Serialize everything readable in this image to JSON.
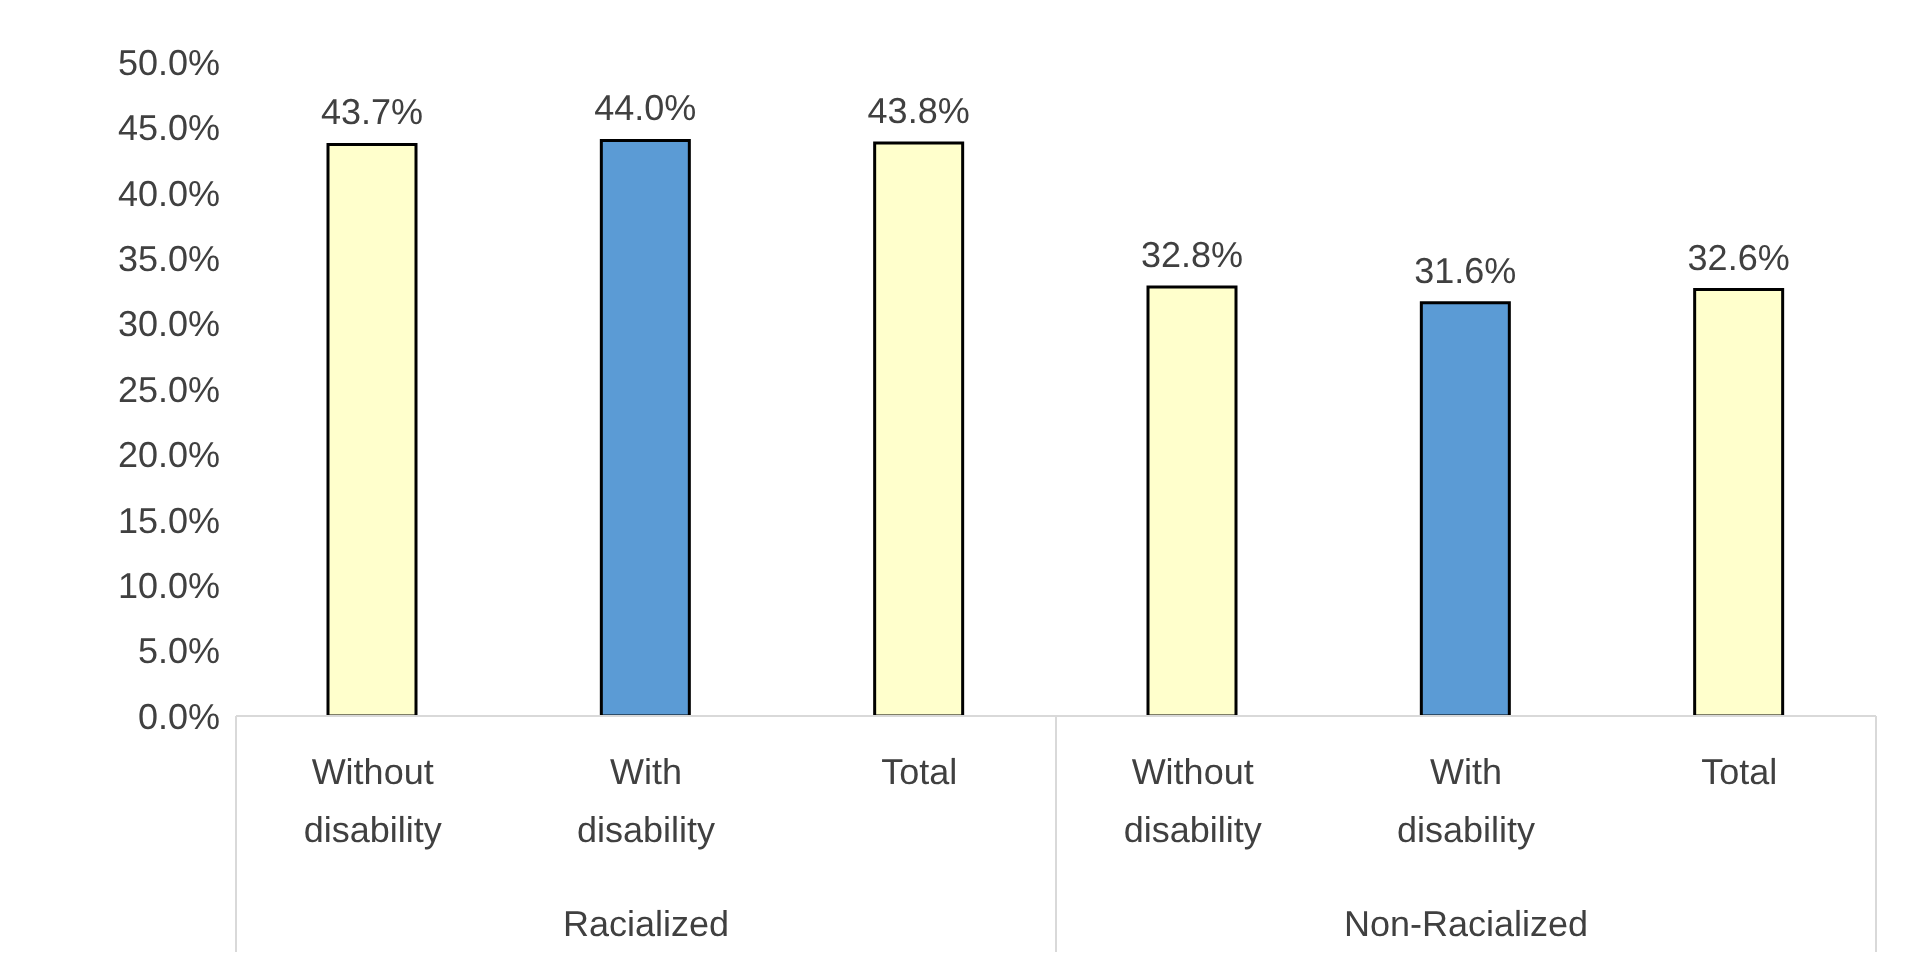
{
  "chart_data": {
    "type": "bar",
    "categories": [
      "Without disability",
      "With disability",
      "Total",
      "Without disability",
      "With disability",
      "Total"
    ],
    "values": [
      43.7,
      44.0,
      43.8,
      32.8,
      31.6,
      32.6
    ],
    "colors": [
      "#ffffcc",
      "#5b9bd5",
      "#ffffcc",
      "#ffffcc",
      "#5b9bd5",
      "#ffffcc"
    ],
    "value_labels": [
      "43.7%",
      "44.0%",
      "43.8%",
      "32.8%",
      "31.6%",
      "32.6%"
    ],
    "ylim": [
      0,
      50
    ],
    "yticks": [
      {
        "value": 0,
        "label": "0.0%"
      },
      {
        "value": 5,
        "label": "5.0%"
      },
      {
        "value": 10,
        "label": "10.0%"
      },
      {
        "value": 15,
        "label": "15.0%"
      },
      {
        "value": 20,
        "label": "20.0%"
      },
      {
        "value": 25,
        "label": "25.0%"
      },
      {
        "value": 30,
        "label": "30.0%"
      },
      {
        "value": 35,
        "label": "35.0%"
      },
      {
        "value": 40,
        "label": "40.0%"
      },
      {
        "value": 45,
        "label": "45.0%"
      },
      {
        "value": 50,
        "label": "50.0%"
      }
    ],
    "annotations": [
      "Racialized",
      "Non-Racialized"
    ],
    "grid": false,
    "legend": false
  }
}
